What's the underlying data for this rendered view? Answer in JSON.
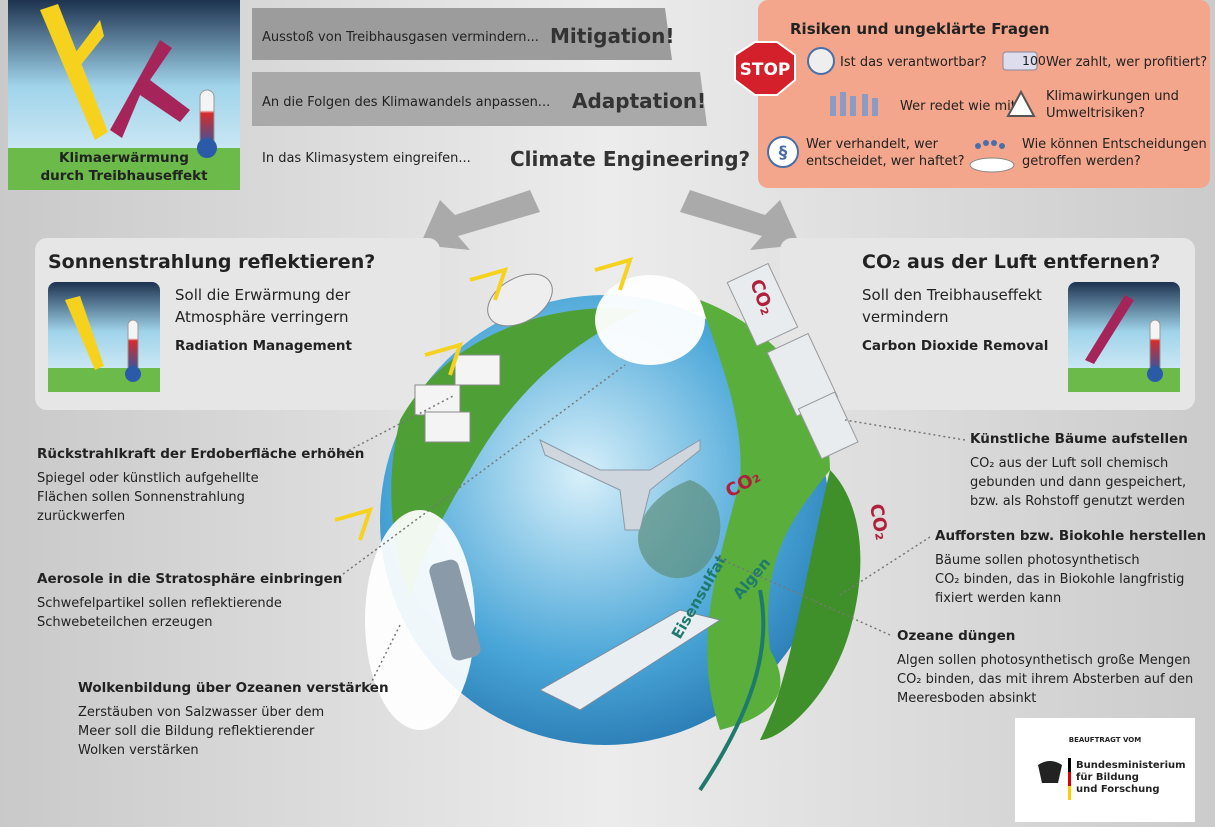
{
  "header": {
    "greenhouse_label": [
      "Klimaerwärmung",
      "durch Treibhauseffekt"
    ],
    "strategies": [
      {
        "lead": "Ausstoß von Treibhausgasen vermindern...",
        "name": "Mitigation!"
      },
      {
        "lead": "An die Folgen des Klimawandels anpassen...",
        "name": "Adaptation!"
      },
      {
        "lead": "In das Klimasystem eingreifen...",
        "name": "Climate Engineering?"
      }
    ]
  },
  "risks": {
    "title": "Risiken und ungeklärte Fragen",
    "stop": "STOP",
    "money": "100",
    "law": "§",
    "items": [
      [
        "Ist das verantwortbar?"
      ],
      [
        "Wer zahlt, wer profitiert?"
      ],
      [
        "Wer redet wie mit?"
      ],
      [
        "Klimawirkungen und",
        "Umweltrisiken?"
      ],
      [
        "Wer verhandelt, wer",
        "entscheidet, wer haftet?"
      ],
      [
        "Wie können Entscheidungen",
        "getroffen werden?"
      ]
    ]
  },
  "approaches": [
    {
      "title": "Sonnenstrahlung reflektieren?",
      "lines": [
        "Soll die Erwärmung der",
        "Atmosphäre verringern"
      ],
      "name": "Radiation Management"
    },
    {
      "title": "CO₂ aus der Luft entfernen?",
      "lines": [
        "Soll den Treibhauseffekt",
        "vermindern"
      ],
      "name": "Carbon Dioxide Removal"
    }
  ],
  "measures": [
    {
      "title": "Rückstrahlkraft der Erdoberfläche erhöhen",
      "lines": [
        "Spiegel oder künstlich aufgehellte",
        "Flächen sollen Sonnenstrahlung",
        "zurückwerfen"
      ]
    },
    {
      "title": "Aerosole in die Stratosphäre einbringen",
      "lines": [
        "Schwefelpartikel sollen reflektierende",
        "Schwebeteilchen erzeugen"
      ]
    },
    {
      "title": "Wolkenbildung über Ozeanen verstärken",
      "lines": [
        "Zerstäuben von Salzwasser über dem",
        "Meer soll die Bildung reflektierender",
        "Wolken verstärken"
      ]
    },
    {
      "title": "Künstliche Bäume aufstellen",
      "lines": [
        "CO₂ aus der Luft soll chemisch",
        "gebunden und dann gespeichert,",
        "bzw. als Rohstoff genutzt werden"
      ]
    },
    {
      "title": "Aufforsten bzw. Biokohle herstellen",
      "lines": [
        "Bäume sollen photosynthetisch",
        "CO₂ binden, das in Biokohle langfristig",
        "fixiert werden kann"
      ]
    },
    {
      "title": "Ozeane düngen",
      "lines": [
        "Algen sollen photosynthetisch große Mengen",
        "CO₂ binden, das mit ihrem Absterben auf den",
        "Meeresboden absinkt"
      ]
    }
  ],
  "globe_labels": {
    "co2": [
      "CO₂",
      "CO₂",
      "CO₂"
    ],
    "algae": "Algen",
    "iron": "Eisensulfat"
  },
  "sponsor": {
    "note": "BEAUFTRAGT VOM",
    "lines": [
      "Bundesministerium",
      "für Bildung",
      "und Forschung"
    ]
  }
}
